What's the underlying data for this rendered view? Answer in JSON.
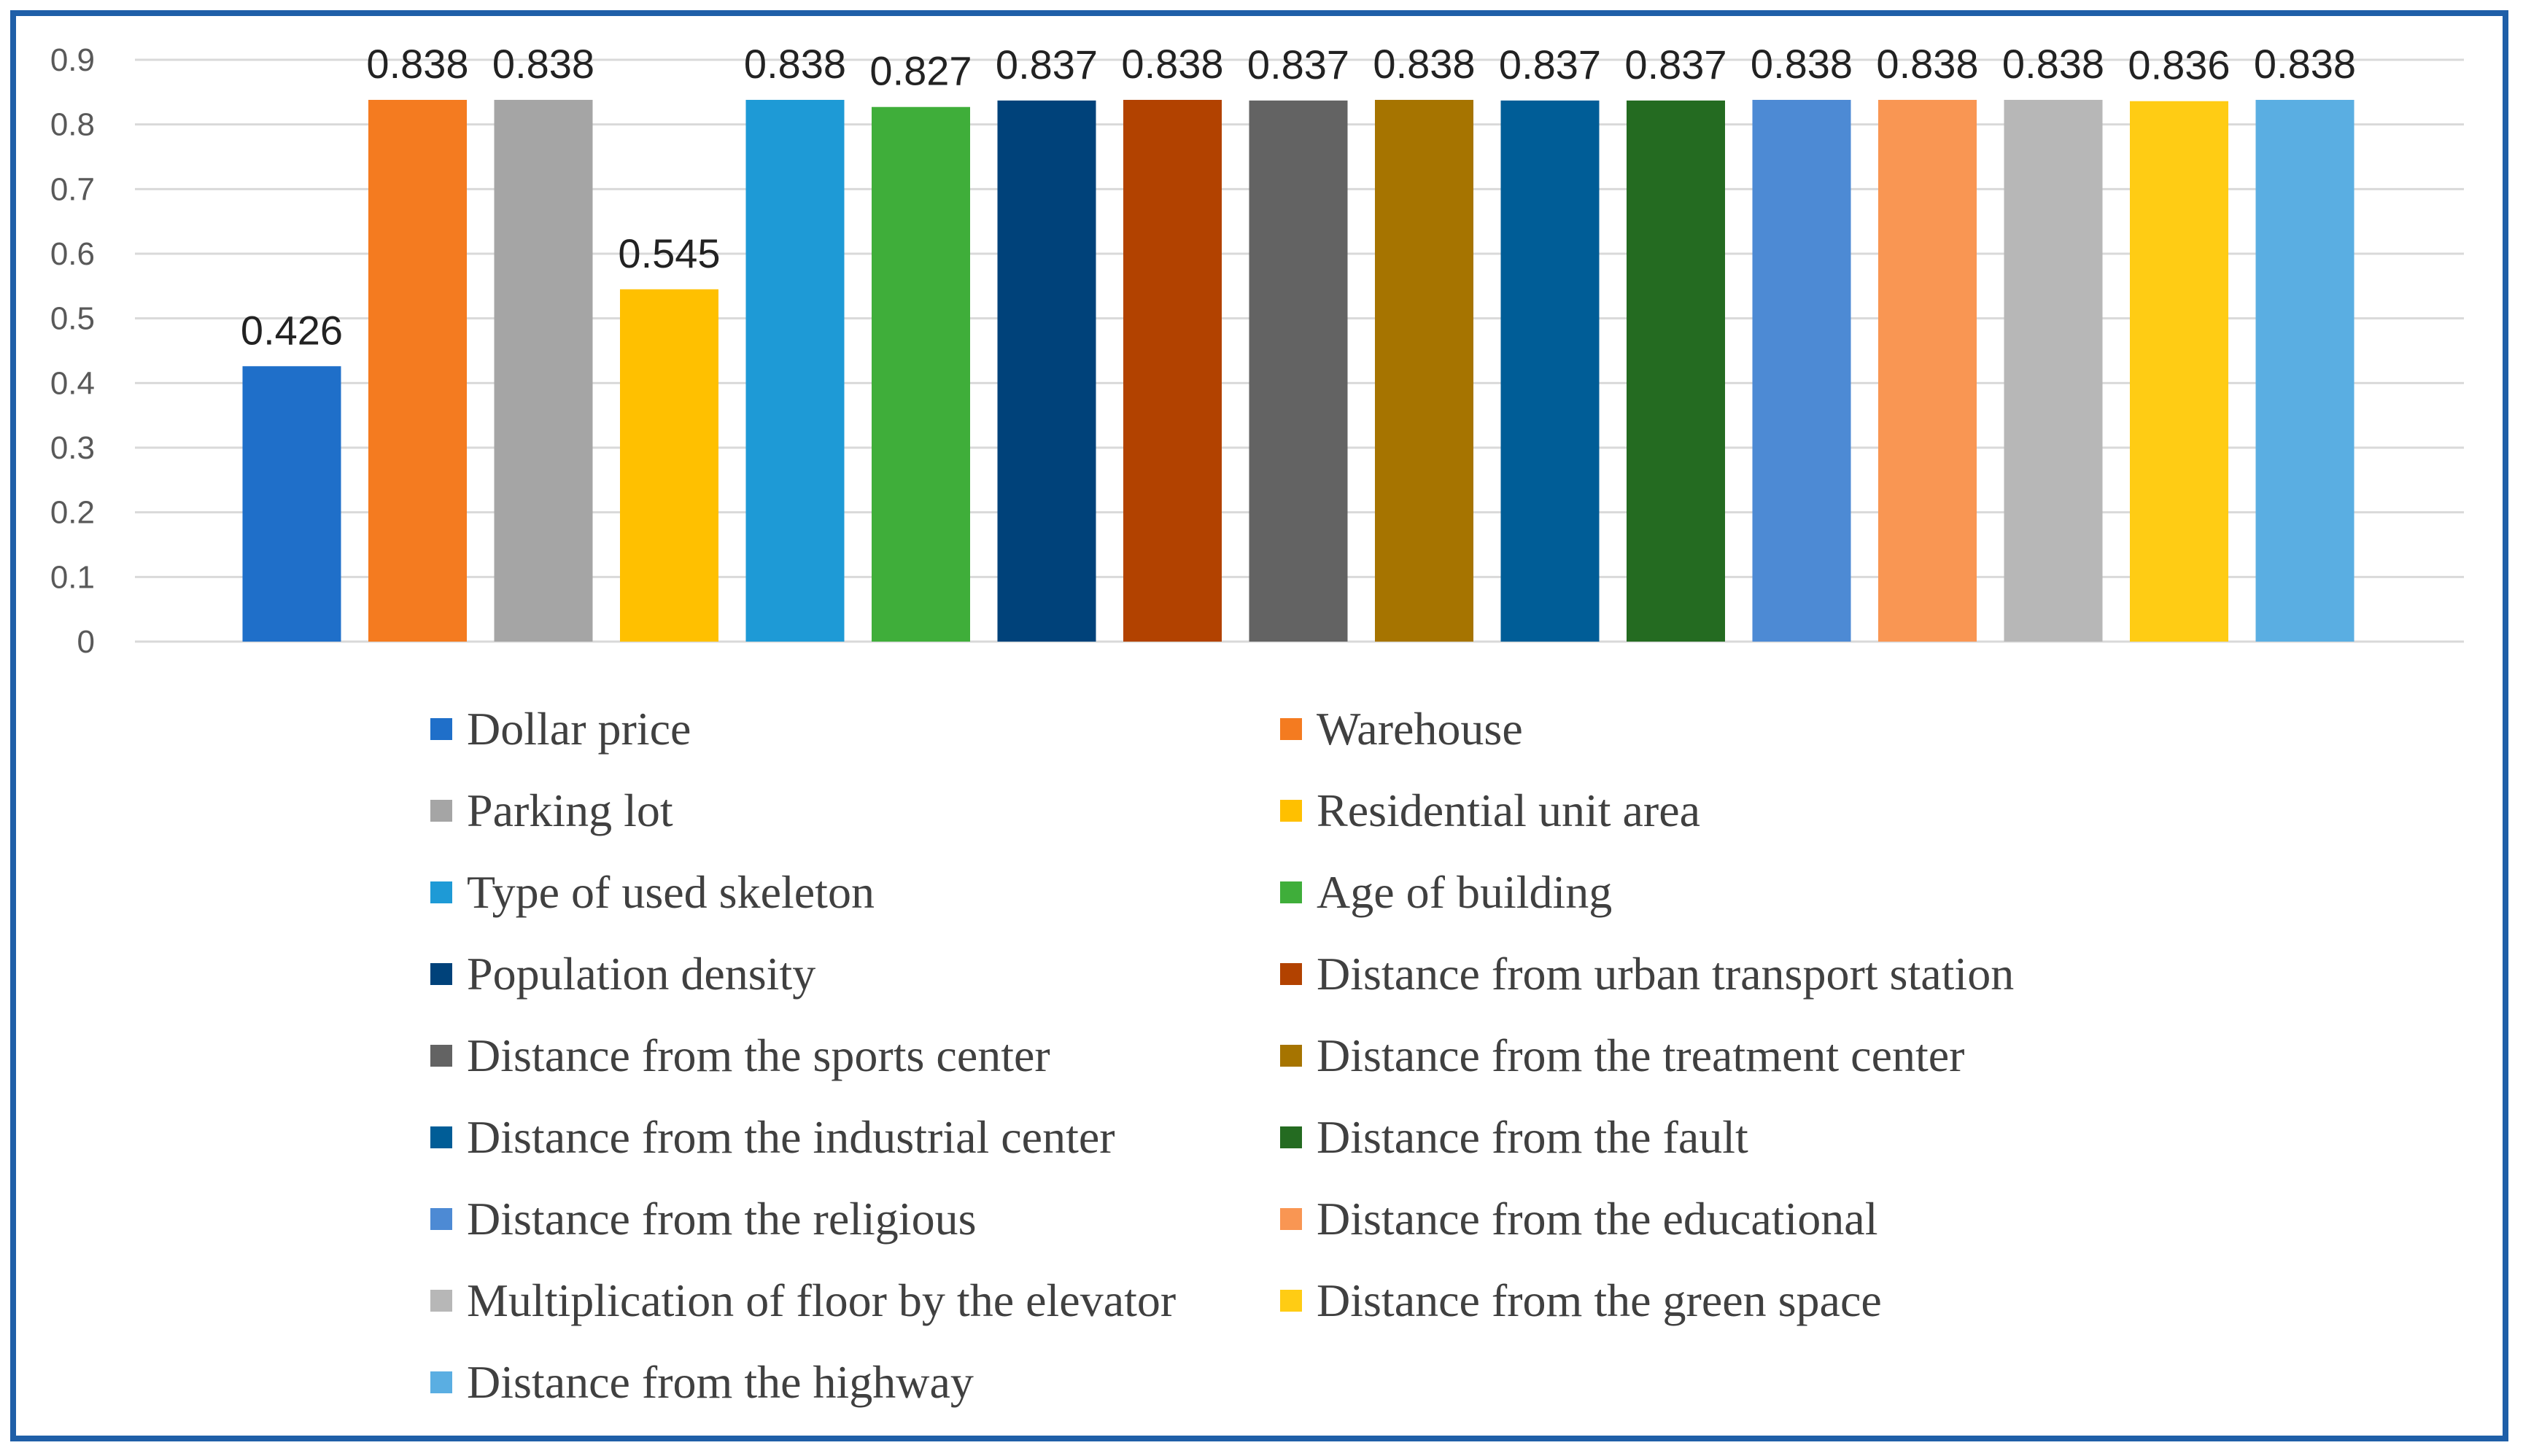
{
  "chart_data": {
    "type": "bar",
    "title": "",
    "xlabel": "",
    "ylabel": "",
    "ylim": [
      0,
      0.9
    ],
    "yticks": [
      "0",
      "0.1",
      "0.2",
      "0.3",
      "0.4",
      "0.5",
      "0.6",
      "0.7",
      "0.8",
      "0.9"
    ],
    "grid": true,
    "legend_position": "bottom",
    "categories": [
      "Dollar price",
      "Warehouse",
      "Parking lot",
      "Residential unit area",
      "Type of used skeleton",
      "Age of building",
      "Population density",
      "Distance from urban transport station",
      "Distance from the sports center",
      "Distance from the treatment center",
      "Distance from the industrial center",
      "Distance from the fault",
      "Distance from the religious",
      "Distance from the educational",
      "Multiplication of floor by the elevator",
      "Distance from the green space",
      "Distance from the highway"
    ],
    "values": [
      0.426,
      0.838,
      0.838,
      0.545,
      0.838,
      0.827,
      0.837,
      0.838,
      0.837,
      0.838,
      0.837,
      0.837,
      0.838,
      0.838,
      0.838,
      0.836,
      0.838
    ],
    "data_labels": [
      "0.426",
      "0.838",
      "0.838",
      "0.545",
      "0.838",
      "0.827",
      "0.837",
      "0.838",
      "0.837",
      "0.838",
      "0.837",
      "0.837",
      "0.838",
      "0.838",
      "0.838",
      "0.836",
      "0.838"
    ],
    "colors": [
      "#1f6fc9",
      "#f47b20",
      "#a5a5a5",
      "#ffc000",
      "#1e9ad6",
      "#3fae3a",
      "#00427a",
      "#b24200",
      "#636363",
      "#a67400",
      "#005d97",
      "#246b21",
      "#4d8ad4",
      "#f99653",
      "#b7b7b7",
      "#ffcc14",
      "#5aaee2"
    ]
  }
}
